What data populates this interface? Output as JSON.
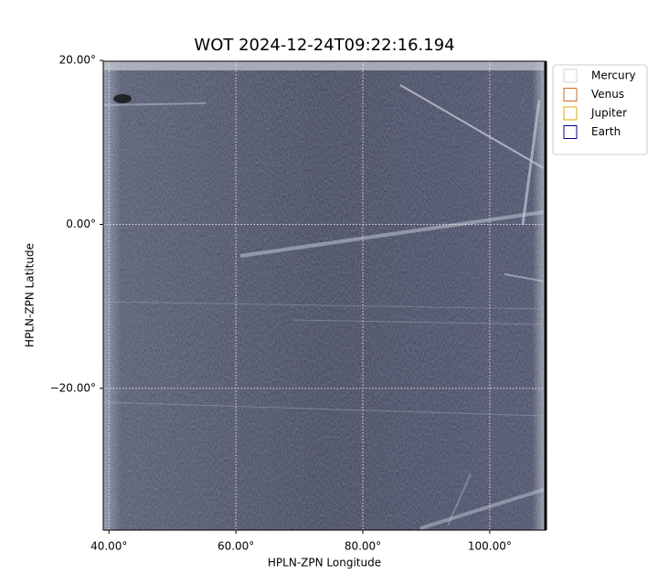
{
  "chart_data": {
    "type": "image",
    "title": "WOT 2024-12-24T09:22:16.194",
    "x_label": "HPLN-ZPN Longitude",
    "y_label": "HPLN-ZPN Latitude",
    "xlim": [
      39.1,
      108.8
    ],
    "ylim": [
      -37.3,
      19.9
    ],
    "xticks": [
      {
        "value": 40,
        "label": "40.00°"
      },
      {
        "value": 60,
        "label": "60.00°"
      },
      {
        "value": 80,
        "label": "80.00°"
      },
      {
        "value": 100,
        "label": "100.00°"
      }
    ],
    "yticks": [
      {
        "value": 20,
        "label": "20.00°"
      },
      {
        "value": 0,
        "label": "0.00°"
      },
      {
        "value": -20,
        "label": "−20.00°"
      }
    ],
    "grid": true,
    "legend": "outside",
    "series": [
      {
        "name": "Mercury",
        "color": "#d3d3d3"
      },
      {
        "name": "Venus",
        "color": "#d2691e"
      },
      {
        "name": "Jupiter",
        "color": "#e6a800"
      },
      {
        "name": "Earth",
        "color": "#00008b"
      }
    ]
  }
}
